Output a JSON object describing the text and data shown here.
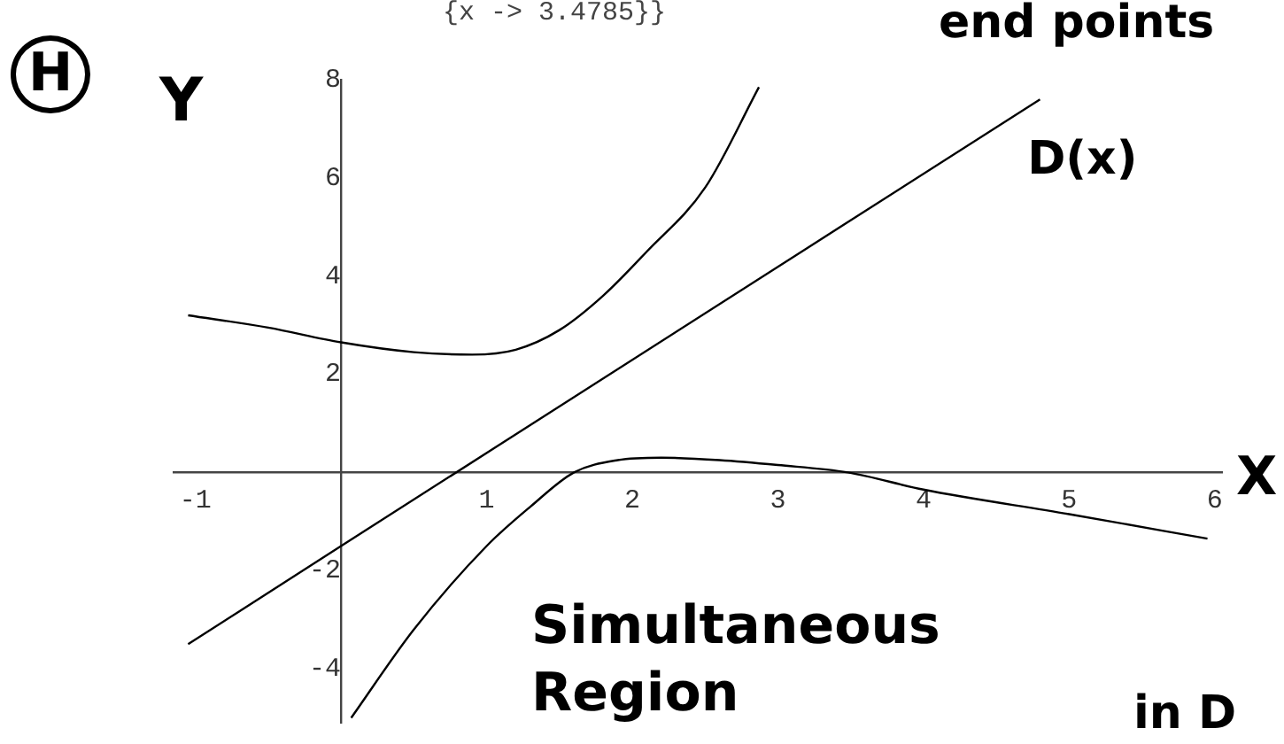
{
  "chart_data": {
    "type": "line",
    "xlabel": "X",
    "ylabel": "Y",
    "series": [
      {
        "color": "#000000",
        "x": [
          -1.05,
          -0.5,
          0,
          0.5,
          0.9,
          1.2,
          1.5,
          1.8,
          2.1,
          2.5,
          2.87
        ],
        "values": [
          3.2,
          2.95,
          2.65,
          2.45,
          2.4,
          2.5,
          2.9,
          3.6,
          4.5,
          5.8,
          7.85
        ]
      },
      {
        "name": "D(x)",
        "color": "#000000",
        "x": [
          -1.05,
          0,
          4.8
        ],
        "values": [
          -3.5,
          -1.5,
          7.6
        ]
      },
      {
        "color": "#000000",
        "x": [
          0.07,
          0.5,
          1,
          1.3,
          1.6,
          1.9,
          2.2,
          2.6,
          3,
          3.48,
          4,
          5,
          5.95
        ],
        "values": [
          -5.0,
          -3.2,
          -1.5,
          -0.7,
          0,
          0.25,
          0.3,
          0.25,
          0.15,
          0,
          -0.35,
          -0.85,
          -1.35
        ]
      }
    ],
    "xlim": [
      -1.15,
      6.05
    ],
    "ylim": [
      -5.1,
      8
    ],
    "xticks": [
      -1,
      1,
      2,
      3,
      4,
      5,
      6
    ],
    "yticks": [
      -4,
      -2,
      2,
      4,
      6,
      8
    ],
    "grid": false,
    "legend": false,
    "marker": "none",
    "line_style": "solid",
    "annotations": [
      "H",
      "{x -> 3.4785}}",
      "end points",
      "Simultaneous Region",
      "in D"
    ]
  }
}
